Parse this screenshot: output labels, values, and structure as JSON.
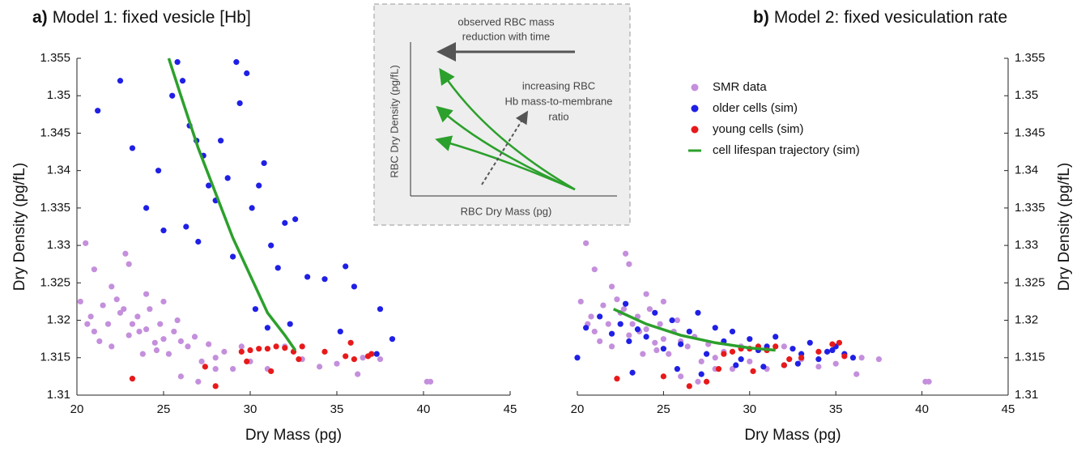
{
  "chart_data": [
    {
      "type": "scatter",
      "label": "a)",
      "title": "Model 1: fixed vesicle [Hb]",
      "x_label": "Dry Mass (pg)",
      "y_label": "Dry Density (pg/fL)",
      "y_axis_side": "left",
      "xlim": [
        20,
        45
      ],
      "xticks": [
        20,
        25,
        30,
        35,
        40,
        45
      ],
      "ylim": [
        1.31,
        1.355
      ],
      "yticks": [
        1.31,
        1.315,
        1.32,
        1.325,
        1.33,
        1.335,
        1.34,
        1.345,
        1.35,
        1.355
      ],
      "series": [
        {
          "color": "#c48fdc",
          "kind": "points",
          "x": [
            20.2,
            20.5,
            20.8,
            21,
            21.3,
            21.5,
            21.8,
            22,
            22.3,
            22.5,
            22.8,
            23,
            23.2,
            23.5,
            23.8,
            24,
            24.2,
            24.5,
            24.8,
            25,
            25.3,
            25.6,
            26,
            26.4,
            26.8,
            27.2,
            27.6,
            28,
            28.5,
            29,
            29.5,
            30,
            31,
            32,
            33,
            34,
            35,
            36.2,
            36.5,
            37.5,
            40.2,
            40.4,
            21,
            22,
            23,
            24,
            25,
            26,
            22.7,
            20.6,
            27,
            28,
            23.6,
            24.6,
            25.8
          ],
          "values": [
            1.3225,
            1.3303,
            1.3205,
            1.3185,
            1.3172,
            1.322,
            1.3195,
            1.3165,
            1.3228,
            1.321,
            1.3289,
            1.318,
            1.3195,
            1.3205,
            1.3155,
            1.3188,
            1.3215,
            1.317,
            1.3195,
            1.3175,
            1.3155,
            1.3185,
            1.3172,
            1.3165,
            1.3178,
            1.3145,
            1.3168,
            1.315,
            1.3158,
            1.3135,
            1.3165,
            1.3145,
            1.3135,
            1.3165,
            1.3148,
            1.3138,
            1.3142,
            1.3128,
            1.315,
            1.3148,
            1.3118,
            1.3118,
            1.3268,
            1.3245,
            1.3275,
            1.3235,
            1.3225,
            1.3125,
            1.3215,
            1.3195,
            1.3118,
            1.3135,
            1.3185,
            1.316,
            1.32
          ]
        },
        {
          "color": "#1f1fe6",
          "kind": "points",
          "x": [
            22.5,
            21.2,
            23.2,
            24.7,
            25.5,
            25.8,
            26.1,
            26.5,
            26.9,
            27.3,
            27.6,
            28,
            28.3,
            28.7,
            29.2,
            29.4,
            29.8,
            30.1,
            30.5,
            30.8,
            31.2,
            31.6,
            32,
            32.6,
            33.3,
            34.3,
            35.5,
            36,
            37.5,
            38.2,
            24,
            25,
            26.3,
            27,
            29,
            30.3,
            31,
            32.3,
            35.2,
            37.3
          ],
          "values": [
            1.352,
            1.348,
            1.343,
            1.34,
            1.35,
            1.3545,
            1.352,
            1.346,
            1.344,
            1.342,
            1.338,
            1.336,
            1.344,
            1.339,
            1.3545,
            1.349,
            1.353,
            1.335,
            1.338,
            1.341,
            1.33,
            1.327,
            1.333,
            1.3335,
            1.3258,
            1.3255,
            1.3272,
            1.3245,
            1.3215,
            1.3175,
            1.335,
            1.332,
            1.3325,
            1.3305,
            1.3285,
            1.3215,
            1.319,
            1.3195,
            1.3185,
            1.3155
          ]
        },
        {
          "color": "#e8191a",
          "kind": "points",
          "x": [
            23.2,
            27.4,
            28,
            29.5,
            30,
            30.5,
            31,
            31.5,
            32,
            32.5,
            33,
            34.3,
            35.5,
            36,
            36.8,
            29.8,
            31.2,
            32.8,
            35.8,
            37
          ],
          "values": [
            1.3122,
            1.3138,
            1.3112,
            1.3158,
            1.316,
            1.3162,
            1.3162,
            1.3165,
            1.3163,
            1.3158,
            1.3165,
            1.3158,
            1.3152,
            1.3148,
            1.3152,
            1.3145,
            1.3132,
            1.3148,
            1.317,
            1.3155
          ]
        },
        {
          "color": "#2ca02c",
          "kind": "line",
          "x": [
            25.3,
            26,
            27,
            28,
            29,
            30,
            31,
            32,
            32.6
          ],
          "values": [
            1.355,
            1.35,
            1.343,
            1.337,
            1.331,
            1.326,
            1.321,
            1.318,
            1.316
          ]
        }
      ]
    },
    {
      "type": "scatter",
      "label": "b)",
      "title": "Model 2: fixed vesiculation rate",
      "x_label": "Dry Mass (pg)",
      "y_label": "Dry Density (pg/fL)",
      "y_axis_side": "right",
      "legend": "upper right",
      "xlim": [
        20,
        45
      ],
      "xticks": [
        20,
        25,
        30,
        35,
        40,
        45
      ],
      "ylim": [
        1.31,
        1.355
      ],
      "yticks": [
        1.31,
        1.315,
        1.32,
        1.325,
        1.33,
        1.335,
        1.34,
        1.345,
        1.35,
        1.355
      ],
      "series": [
        {
          "name": "SMR data",
          "color": "#c48fdc",
          "kind": "points",
          "x": [
            20.2,
            20.5,
            20.8,
            21,
            21.3,
            21.5,
            21.8,
            22,
            22.3,
            22.5,
            22.8,
            23,
            23.2,
            23.5,
            23.8,
            24,
            24.2,
            24.5,
            24.8,
            25,
            25.3,
            25.6,
            26,
            26.4,
            26.8,
            27.2,
            27.6,
            28,
            28.5,
            29,
            29.5,
            30,
            31,
            32,
            33,
            34,
            35,
            36.2,
            36.5,
            37.5,
            40.2,
            40.4,
            21,
            22,
            23,
            24,
            25,
            26,
            22.7,
            20.6,
            27,
            28,
            23.6,
            24.6,
            25.8
          ],
          "values": [
            1.3225,
            1.3303,
            1.3205,
            1.3185,
            1.3172,
            1.322,
            1.3195,
            1.3165,
            1.3228,
            1.321,
            1.3289,
            1.318,
            1.3195,
            1.3205,
            1.3155,
            1.3188,
            1.3215,
            1.317,
            1.3195,
            1.3175,
            1.3155,
            1.3185,
            1.3172,
            1.3165,
            1.3178,
            1.3145,
            1.3168,
            1.315,
            1.3158,
            1.3135,
            1.3165,
            1.3145,
            1.3135,
            1.3165,
            1.3148,
            1.3138,
            1.3142,
            1.3128,
            1.315,
            1.3148,
            1.3118,
            1.3118,
            1.3268,
            1.3245,
            1.3275,
            1.3235,
            1.3225,
            1.3125,
            1.3215,
            1.3195,
            1.3118,
            1.3135,
            1.3185,
            1.316,
            1.32
          ]
        },
        {
          "name": "older cells (sim)",
          "color": "#1f1fe6",
          "kind": "points",
          "x": [
            20,
            20.5,
            21.3,
            22,
            22.5,
            23,
            23.5,
            24,
            24.5,
            25,
            25.5,
            26,
            26.5,
            27,
            27.5,
            28,
            28.5,
            29,
            29.5,
            30,
            30.5,
            31,
            31.5,
            32,
            32.5,
            33,
            33.5,
            34,
            34.5,
            35,
            35.5,
            36,
            23.2,
            25.8,
            27.2,
            29.2,
            30.8,
            32.8,
            34.8,
            22.8
          ],
          "values": [
            1.315,
            1.319,
            1.3205,
            1.3182,
            1.3195,
            1.3172,
            1.3188,
            1.3178,
            1.321,
            1.3162,
            1.32,
            1.3168,
            1.3185,
            1.321,
            1.3155,
            1.319,
            1.3172,
            1.3185,
            1.3148,
            1.3175,
            1.316,
            1.3165,
            1.3178,
            1.314,
            1.3162,
            1.3155,
            1.317,
            1.3148,
            1.3158,
            1.3165,
            1.3155,
            1.315,
            1.313,
            1.3135,
            1.3128,
            1.314,
            1.3138,
            1.3142,
            1.316,
            1.3222
          ]
        },
        {
          "name": "young cells (sim)",
          "color": "#e8191a",
          "kind": "points",
          "x": [
            22.3,
            25,
            26.5,
            27.5,
            28.5,
            29,
            29.5,
            30,
            30.5,
            31,
            31.5,
            32.3,
            33,
            34,
            34.8,
            35.5,
            28.2,
            30.2,
            32,
            35.2
          ],
          "values": [
            1.3122,
            1.3125,
            1.3112,
            1.3118,
            1.3155,
            1.3158,
            1.3162,
            1.3162,
            1.3165,
            1.316,
            1.3165,
            1.3148,
            1.315,
            1.3158,
            1.3168,
            1.3152,
            1.3135,
            1.3132,
            1.314,
            1.317
          ]
        },
        {
          "name": "cell lifespan trajectory (sim)",
          "color": "#2ca02c",
          "kind": "line",
          "x": [
            22.1,
            24,
            26,
            28,
            30,
            31.5
          ],
          "values": [
            1.3215,
            1.3195,
            1.318,
            1.317,
            1.3163,
            1.316
          ]
        }
      ]
    }
  ],
  "inset": {
    "arrow_label": [
      "observed RBC mass",
      "reduction with time"
    ],
    "y_label": "RBC Dry Density (pg/fL)",
    "x_label": "RBC Dry Mass (pg)",
    "ratio_label": [
      "increasing RBC",
      "Hb mass-to-membrane",
      "ratio"
    ]
  }
}
